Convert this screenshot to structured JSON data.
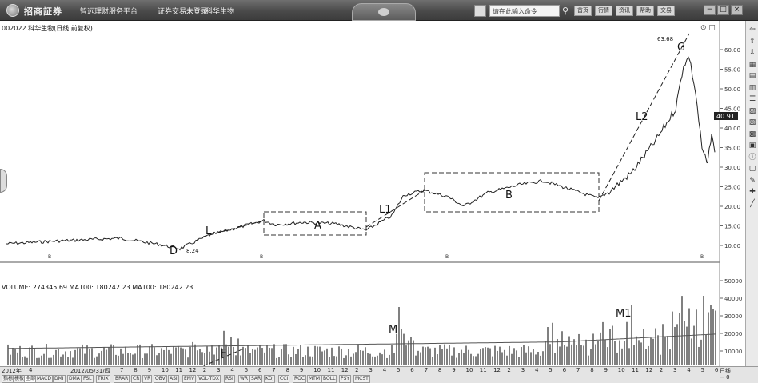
{
  "app": {
    "brand": "招商証券",
    "subtitle": "智远理财服务平台",
    "menu": [
      "证券交易未登录",
      "科华生物"
    ],
    "search_placeholder": "请在此输入命令",
    "toolbar_buttons": [
      "首页",
      "行情",
      "资讯",
      "帮助",
      "交易"
    ],
    "window_controls": [
      "−",
      "□",
      "×"
    ]
  },
  "chart": {
    "stock_title": "002022 科华生物(日线 前复权)",
    "volume_legend": "VOLUME: 274345.69  MA100: 180242.23  MA100: 180242.23",
    "current_price": "40.91",
    "price_ticks": [
      "60.00",
      "55.00",
      "50.00",
      "45.00",
      "40.00",
      "35.00",
      "30.00",
      "25.00",
      "20.00",
      "15.00",
      "10.00"
    ],
    "volume_ticks": [
      "50000",
      "40000",
      "30000",
      "20000",
      "10000"
    ],
    "annotations": {
      "peak_price": "63.68",
      "low_price": "8.24",
      "D": "D",
      "L": "L",
      "A": "A",
      "L1": "L1",
      "B": "B",
      "L2": "L2",
      "G": "G",
      "M": "M",
      "M1": "M1",
      "F": "F"
    },
    "colors": {
      "price_line": "#222222",
      "box_dash": "#333333",
      "trend_dash": "#222222",
      "volume_bar": "#2b2b2b",
      "ma_line": "#555555"
    }
  },
  "bottom": {
    "date_labels": [
      "2012年",
      "4",
      "2012/05/31/四",
      "7",
      "8",
      "9",
      "10",
      "11",
      "12",
      "2",
      "3",
      "4",
      "5",
      "6",
      "7",
      "8",
      "9",
      "10",
      "11",
      "12",
      "2",
      "3",
      "4",
      "5",
      "6",
      "7",
      "8",
      "9",
      "10",
      "11",
      "12",
      "2",
      "3",
      "4",
      "5",
      "6",
      "7",
      "8",
      "9",
      "10",
      "11",
      "12",
      "2",
      "3",
      "4",
      "5",
      "6"
    ],
    "indicator_tabs": [
      "指标",
      "模板",
      "全部",
      "MACD",
      "DMI",
      "DMA",
      "FSL",
      "TRIX",
      "BRAR",
      "CR",
      "VR",
      "OBV",
      "ASI",
      "EMV",
      "VOL-TDX",
      "RSI",
      "WR",
      "SAR",
      "KDJ",
      "CCI",
      "ROC",
      "MTM",
      "BOLL",
      "PSY",
      "MCST"
    ],
    "zoom_label": "日线",
    "zoom_minus": "−",
    "zoom_value": "0"
  },
  "right_toolbar_icons": [
    "arrow-left-icon",
    "arrow-up-icon",
    "arrow-down-icon",
    "table-icon",
    "grid-icon",
    "doc-icon",
    "list-icon",
    "chart-icon",
    "page-icon",
    "report-icon",
    "news-icon",
    "info-icon",
    "calc-icon",
    "pen-icon",
    "cross-icon",
    "line-tool-icon"
  ]
}
